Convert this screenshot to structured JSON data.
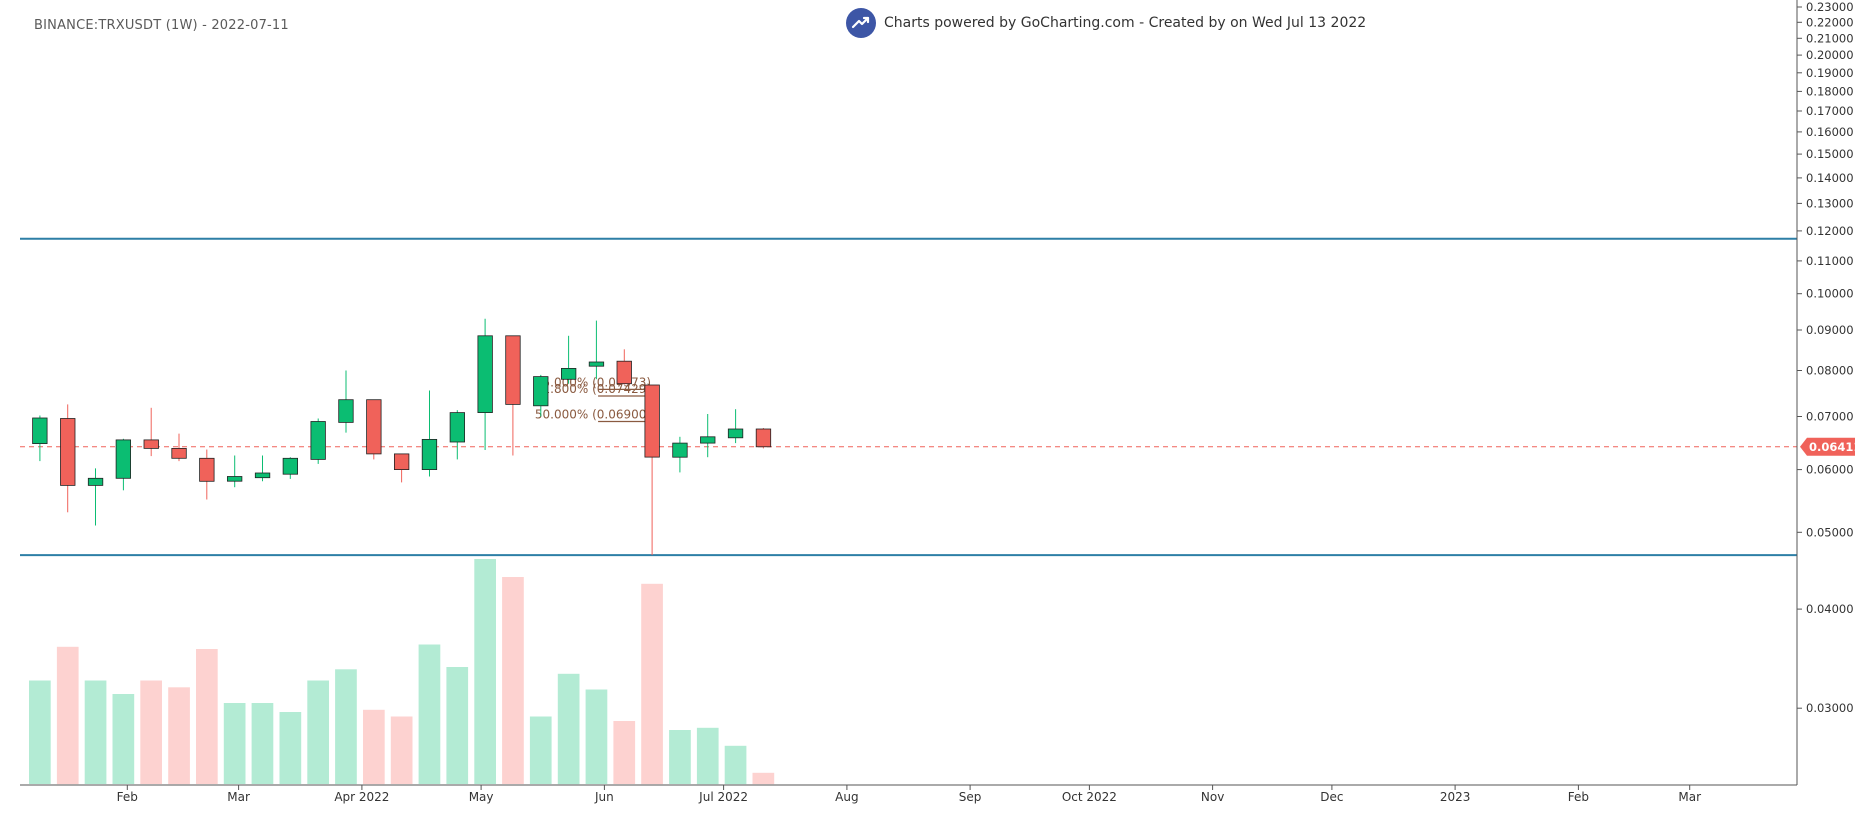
{
  "header": {
    "symbol": "BINANCE:TRXUSDT (1W) - 2022-07-11",
    "brand": "Charts powered by GoCharting.com - Created by  on Wed Jul 13 2022",
    "brand_icon": "trending-up-icon",
    "brand_color": "#3d56a6"
  },
  "colors": {
    "up": "#0bbd72",
    "down": "#f0625a",
    "vol_up": "#b3ebd4",
    "vol_down": "#fdd2d0",
    "hline": "#2d7fa6",
    "price_line": "#f0625a",
    "fib": "#8a5a40"
  },
  "chart_data": {
    "type": "candlestick",
    "title": "BINANCE:TRXUSDT (1W) - 2022-07-11",
    "y_axis": {
      "scale": "log",
      "range": [
        0.024,
        0.232
      ],
      "ticks": [
        "0.03000",
        "0.04000",
        "0.05000",
        "0.06000",
        "0.07000",
        "0.08000",
        "0.09000",
        "0.10000",
        "0.11000",
        "0.12000",
        "0.13000",
        "0.14000",
        "0.15000",
        "0.16000",
        "0.17000",
        "0.18000",
        "0.19000",
        "0.20000",
        "0.21000",
        "0.22000",
        "0.23000"
      ]
    },
    "x_axis": {
      "ticks": [
        "Feb",
        "Mar",
        "Apr 2022",
        "May",
        "Jun",
        "Jul 2022",
        "Aug",
        "Sep",
        "Oct 2022",
        "Nov",
        "Dec",
        "2023",
        "Feb",
        "Mar"
      ],
      "start": "2022-01-10",
      "range": [
        "2022-01-05",
        "2023-03-28"
      ]
    },
    "candles": [
      {
        "date": "2022-01-10",
        "open": 0.0647,
        "high": 0.0702,
        "low": 0.0615,
        "close": 0.0697
      },
      {
        "date": "2022-01-17",
        "open": 0.0696,
        "high": 0.0725,
        "low": 0.053,
        "close": 0.0573
      },
      {
        "date": "2022-01-24",
        "open": 0.0573,
        "high": 0.0602,
        "low": 0.051,
        "close": 0.0585
      },
      {
        "date": "2022-01-31",
        "open": 0.0585,
        "high": 0.0656,
        "low": 0.0565,
        "close": 0.0654
      },
      {
        "date": "2022-02-07",
        "open": 0.0654,
        "high": 0.0718,
        "low": 0.0624,
        "close": 0.0638
      },
      {
        "date": "2022-02-14",
        "open": 0.0638,
        "high": 0.0666,
        "low": 0.0615,
        "close": 0.062
      },
      {
        "date": "2022-02-21",
        "open": 0.062,
        "high": 0.0636,
        "low": 0.055,
        "close": 0.058
      },
      {
        "date": "2022-02-28",
        "open": 0.058,
        "high": 0.0625,
        "low": 0.057,
        "close": 0.0588
      },
      {
        "date": "2022-03-07",
        "open": 0.0586,
        "high": 0.0625,
        "low": 0.058,
        "close": 0.0594
      },
      {
        "date": "2022-03-14",
        "open": 0.0592,
        "high": 0.0622,
        "low": 0.0584,
        "close": 0.062
      },
      {
        "date": "2022-03-21",
        "open": 0.0618,
        "high": 0.0696,
        "low": 0.061,
        "close": 0.069
      },
      {
        "date": "2022-03-28",
        "open": 0.0688,
        "high": 0.08,
        "low": 0.0668,
        "close": 0.0735
      },
      {
        "date": "2022-04-04",
        "open": 0.0735,
        "high": 0.0735,
        "low": 0.0618,
        "close": 0.0628
      },
      {
        "date": "2022-04-11",
        "open": 0.0628,
        "high": 0.0628,
        "low": 0.0578,
        "close": 0.06
      },
      {
        "date": "2022-04-18",
        "open": 0.06,
        "high": 0.0755,
        "low": 0.0588,
        "close": 0.0655
      },
      {
        "date": "2022-04-25",
        "open": 0.065,
        "high": 0.0713,
        "low": 0.0618,
        "close": 0.0708
      },
      {
        "date": "2022-05-02",
        "open": 0.0708,
        "high": 0.093,
        "low": 0.0635,
        "close": 0.0885
      },
      {
        "date": "2022-05-09",
        "open": 0.0885,
        "high": 0.0885,
        "low": 0.0625,
        "close": 0.0725
      },
      {
        "date": "2022-05-16",
        "open": 0.0722,
        "high": 0.079,
        "low": 0.07,
        "close": 0.0786
      },
      {
        "date": "2022-05-23",
        "open": 0.078,
        "high": 0.0885,
        "low": 0.077,
        "close": 0.0805
      },
      {
        "date": "2022-05-30",
        "open": 0.081,
        "high": 0.0925,
        "low": 0.078,
        "close": 0.082
      },
      {
        "date": "2022-06-06",
        "open": 0.0822,
        "high": 0.0851,
        "low": 0.0768,
        "close": 0.077
      },
      {
        "date": "2022-06-13",
        "open": 0.0767,
        "high": 0.0767,
        "low": 0.0468,
        "close": 0.0622
      },
      {
        "date": "2022-06-20",
        "open": 0.0622,
        "high": 0.066,
        "low": 0.0595,
        "close": 0.0648
      },
      {
        "date": "2022-06-27",
        "open": 0.0648,
        "high": 0.0705,
        "low": 0.0622,
        "close": 0.066
      },
      {
        "date": "2022-07-04",
        "open": 0.0658,
        "high": 0.0715,
        "low": 0.0648,
        "close": 0.0675
      },
      {
        "date": "2022-07-11",
        "open": 0.0675,
        "high": 0.0677,
        "low": 0.0638,
        "close": 0.0641
      }
    ],
    "volume_max_ratio": [
      0.46,
      0.61,
      0.46,
      0.4,
      0.46,
      0.43,
      0.6,
      0.36,
      0.36,
      0.32,
      0.46,
      0.51,
      0.33,
      0.3,
      0.62,
      0.52,
      1.0,
      0.92,
      0.3,
      0.49,
      0.42,
      0.28,
      0.89,
      0.24,
      0.25,
      0.17,
      0.05
    ],
    "horizontal_lines": [
      0.1173,
      0.0468
    ],
    "current_price": {
      "value": 0.06411,
      "label": "0.06411"
    },
    "fib_levels": [
      {
        "label": "65.000% (0.07573)",
        "value": 0.07573
      },
      {
        "label": "61.800% (0.07429)",
        "value": 0.07429
      },
      {
        "label": "50.000% (0.06900)",
        "value": 0.069
      }
    ]
  }
}
